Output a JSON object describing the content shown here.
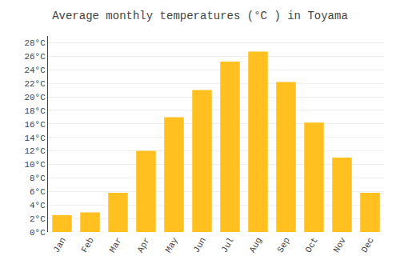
{
  "chart_data": {
    "type": "bar",
    "title": "Average monthly temperatures (°C ) in Toyama",
    "categories": [
      "Jan",
      "Feb",
      "Mar",
      "Apr",
      "May",
      "Jun",
      "Jul",
      "Aug",
      "Sep",
      "Oct",
      "Nov",
      "Dec"
    ],
    "values": [
      2.5,
      2.9,
      5.8,
      12.0,
      17.0,
      21.0,
      25.2,
      26.7,
      22.2,
      16.2,
      11.0,
      5.8
    ],
    "color": "#FFC020",
    "ylim": [
      0,
      29
    ],
    "yticks": [
      {
        "value": 0,
        "label": "0°C"
      },
      {
        "value": 2,
        "label": "2°C"
      },
      {
        "value": 4,
        "label": "4°C"
      },
      {
        "value": 6,
        "label": "6°C"
      },
      {
        "value": 8,
        "label": "8°C"
      },
      {
        "value": 10,
        "label": "10°C"
      },
      {
        "value": 12,
        "label": "12°C"
      },
      {
        "value": 14,
        "label": "14°C"
      },
      {
        "value": 16,
        "label": "16°C"
      },
      {
        "value": 18,
        "label": "18°C"
      },
      {
        "value": 20,
        "label": "20°C"
      },
      {
        "value": 22,
        "label": "22°C"
      },
      {
        "value": 24,
        "label": "24°C"
      },
      {
        "value": 26,
        "label": "26°C"
      },
      {
        "value": 28,
        "label": "28°C"
      }
    ],
    "grid": true
  }
}
